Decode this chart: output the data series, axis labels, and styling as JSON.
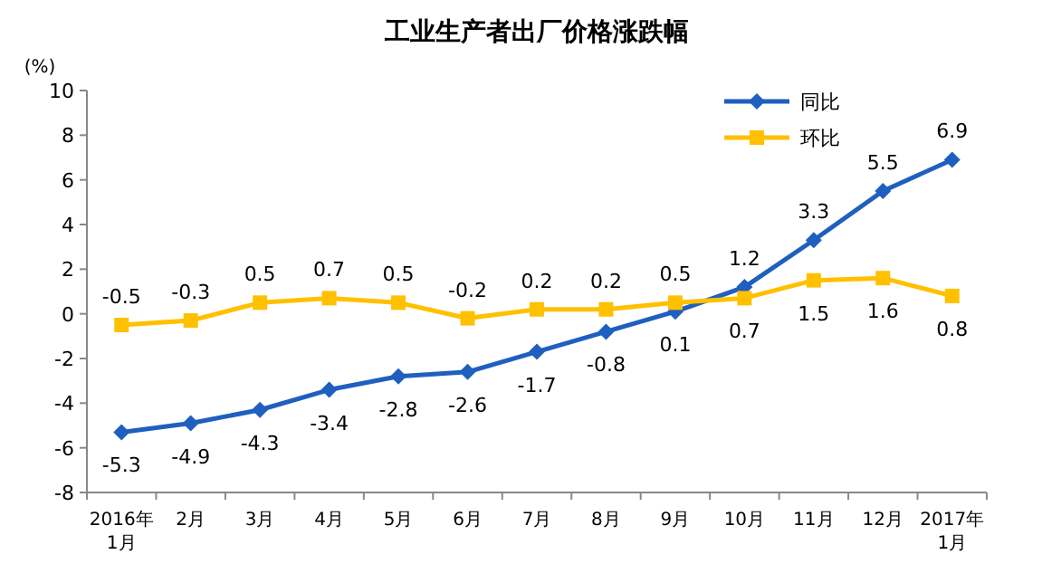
{
  "chart_data": {
    "type": "line",
    "title": "工业生产者出厂价格涨跌幅",
    "ylabel": "(%)",
    "categories": [
      "2016年\n1月",
      "2月",
      "3月",
      "4月",
      "5月",
      "6月",
      "7月",
      "8月",
      "9月",
      "10月",
      "11月",
      "12月",
      "2017年\n1月"
    ],
    "series": [
      {
        "name": "同比",
        "color": "#1f5fbf",
        "marker": "diamond",
        "values": [
          -5.3,
          -4.9,
          -4.3,
          -3.4,
          -2.8,
          -2.6,
          -1.7,
          -0.8,
          0.1,
          1.2,
          3.3,
          5.5,
          6.9
        ]
      },
      {
        "name": "环比",
        "color": "#ffc000",
        "marker": "square",
        "values": [
          -0.5,
          -0.3,
          0.5,
          0.7,
          0.5,
          -0.2,
          0.2,
          0.2,
          0.5,
          0.7,
          1.5,
          1.6,
          0.8
        ]
      }
    ],
    "ylim": [
      -8,
      10
    ],
    "yticks": [
      -8,
      -6,
      -4,
      -2,
      0,
      2,
      4,
      6,
      8,
      10
    ],
    "data_labels": true,
    "legend": "top right",
    "grid": false
  }
}
